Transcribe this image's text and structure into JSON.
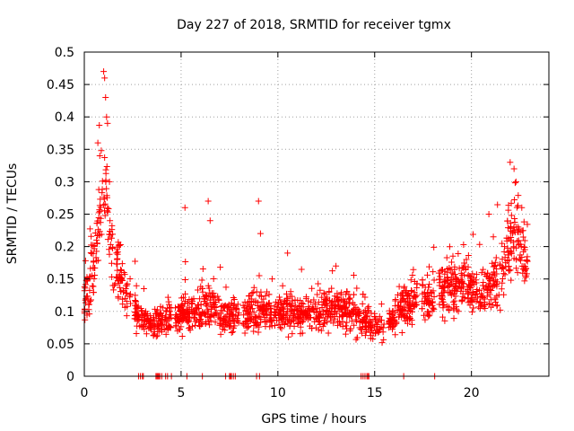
{
  "chart_data": {
    "type": "scatter",
    "title": "Day 227 of 2018, SRMTID for receiver tgmx",
    "xlabel": "GPS time / hours",
    "ylabel": "SRMTID / TECUs",
    "xlim": [
      0,
      24
    ],
    "ylim": [
      0,
      0.5
    ],
    "xticks": [
      0,
      5,
      10,
      15,
      20
    ],
    "xtick_labels": [
      "0",
      "5",
      "10",
      "15",
      "20"
    ],
    "yticks": [
      0,
      0.05,
      0.1,
      0.15,
      0.2,
      0.25,
      0.3,
      0.35,
      0.4,
      0.45,
      0.5
    ],
    "ytick_labels": [
      "0",
      "0.05",
      "0.1",
      "0.15",
      "0.2",
      "0.25",
      "0.3",
      "0.35",
      "0.4",
      "0.45",
      "0.5"
    ],
    "grid": true,
    "marker": "plus",
    "series": [
      {
        "name": "SRMTID",
        "color": "#ff0000",
        "profile": [
          [
            0.0,
            0.12
          ],
          [
            0.3,
            0.14
          ],
          [
            0.6,
            0.19
          ],
          [
            0.85,
            0.26
          ],
          [
            1.1,
            0.31
          ],
          [
            1.3,
            0.22
          ],
          [
            1.6,
            0.17
          ],
          [
            2.0,
            0.14
          ],
          [
            2.4,
            0.12
          ],
          [
            2.8,
            0.09
          ],
          [
            3.5,
            0.08
          ],
          [
            4.5,
            0.09
          ],
          [
            5.5,
            0.1
          ],
          [
            6.5,
            0.11
          ],
          [
            7.5,
            0.09
          ],
          [
            9.0,
            0.1
          ],
          [
            10.0,
            0.1
          ],
          [
            11.0,
            0.095
          ],
          [
            12.0,
            0.1
          ],
          [
            13.0,
            0.105
          ],
          [
            14.0,
            0.1
          ],
          [
            14.5,
            0.085
          ],
          [
            15.5,
            0.08
          ],
          [
            16.0,
            0.09
          ],
          [
            16.5,
            0.11
          ],
          [
            17.5,
            0.12
          ],
          [
            18.5,
            0.13
          ],
          [
            19.5,
            0.14
          ],
          [
            20.5,
            0.13
          ],
          [
            21.5,
            0.15
          ],
          [
            22.0,
            0.2
          ],
          [
            22.3,
            0.22
          ],
          [
            22.8,
            0.18
          ]
        ],
        "spikes": [
          [
            1.0,
            0.47
          ],
          [
            1.05,
            0.46
          ],
          [
            1.1,
            0.43
          ],
          [
            1.15,
            0.4
          ],
          [
            1.2,
            0.39
          ],
          [
            0.7,
            0.36
          ],
          [
            0.8,
            0.34
          ],
          [
            1.3,
            0.3
          ],
          [
            5.2,
            0.26
          ],
          [
            6.4,
            0.27
          ],
          [
            9.0,
            0.27
          ],
          [
            6.5,
            0.24
          ],
          [
            9.1,
            0.22
          ],
          [
            22.0,
            0.33
          ],
          [
            22.2,
            0.32
          ],
          [
            22.3,
            0.3
          ],
          [
            22.6,
            0.26
          ],
          [
            20.9,
            0.25
          ],
          [
            10.5,
            0.19
          ],
          [
            13.0,
            0.17
          ]
        ],
        "gaps": [
          [
            2.4,
            2.6
          ],
          [
            4.5,
            4.7
          ],
          [
            8.0,
            8.2
          ],
          [
            15.5,
            15.7
          ],
          [
            17.2,
            17.4
          ],
          [
            18.1,
            18.3
          ]
        ],
        "zero_marks": [
          2.8,
          2.9,
          3.0,
          3.05,
          3.7,
          3.75,
          3.8,
          3.85,
          3.9,
          4.0,
          4.2,
          4.3,
          4.5,
          5.3,
          6.1,
          7.3,
          7.5,
          7.55,
          7.6,
          7.7,
          7.8,
          8.9,
          9.05,
          14.3,
          14.4,
          14.5,
          14.6,
          14.65,
          14.7,
          16.5,
          18.1
        ],
        "time_range": [
          0.0,
          22.9
        ],
        "num_points": 2000
      }
    ]
  }
}
